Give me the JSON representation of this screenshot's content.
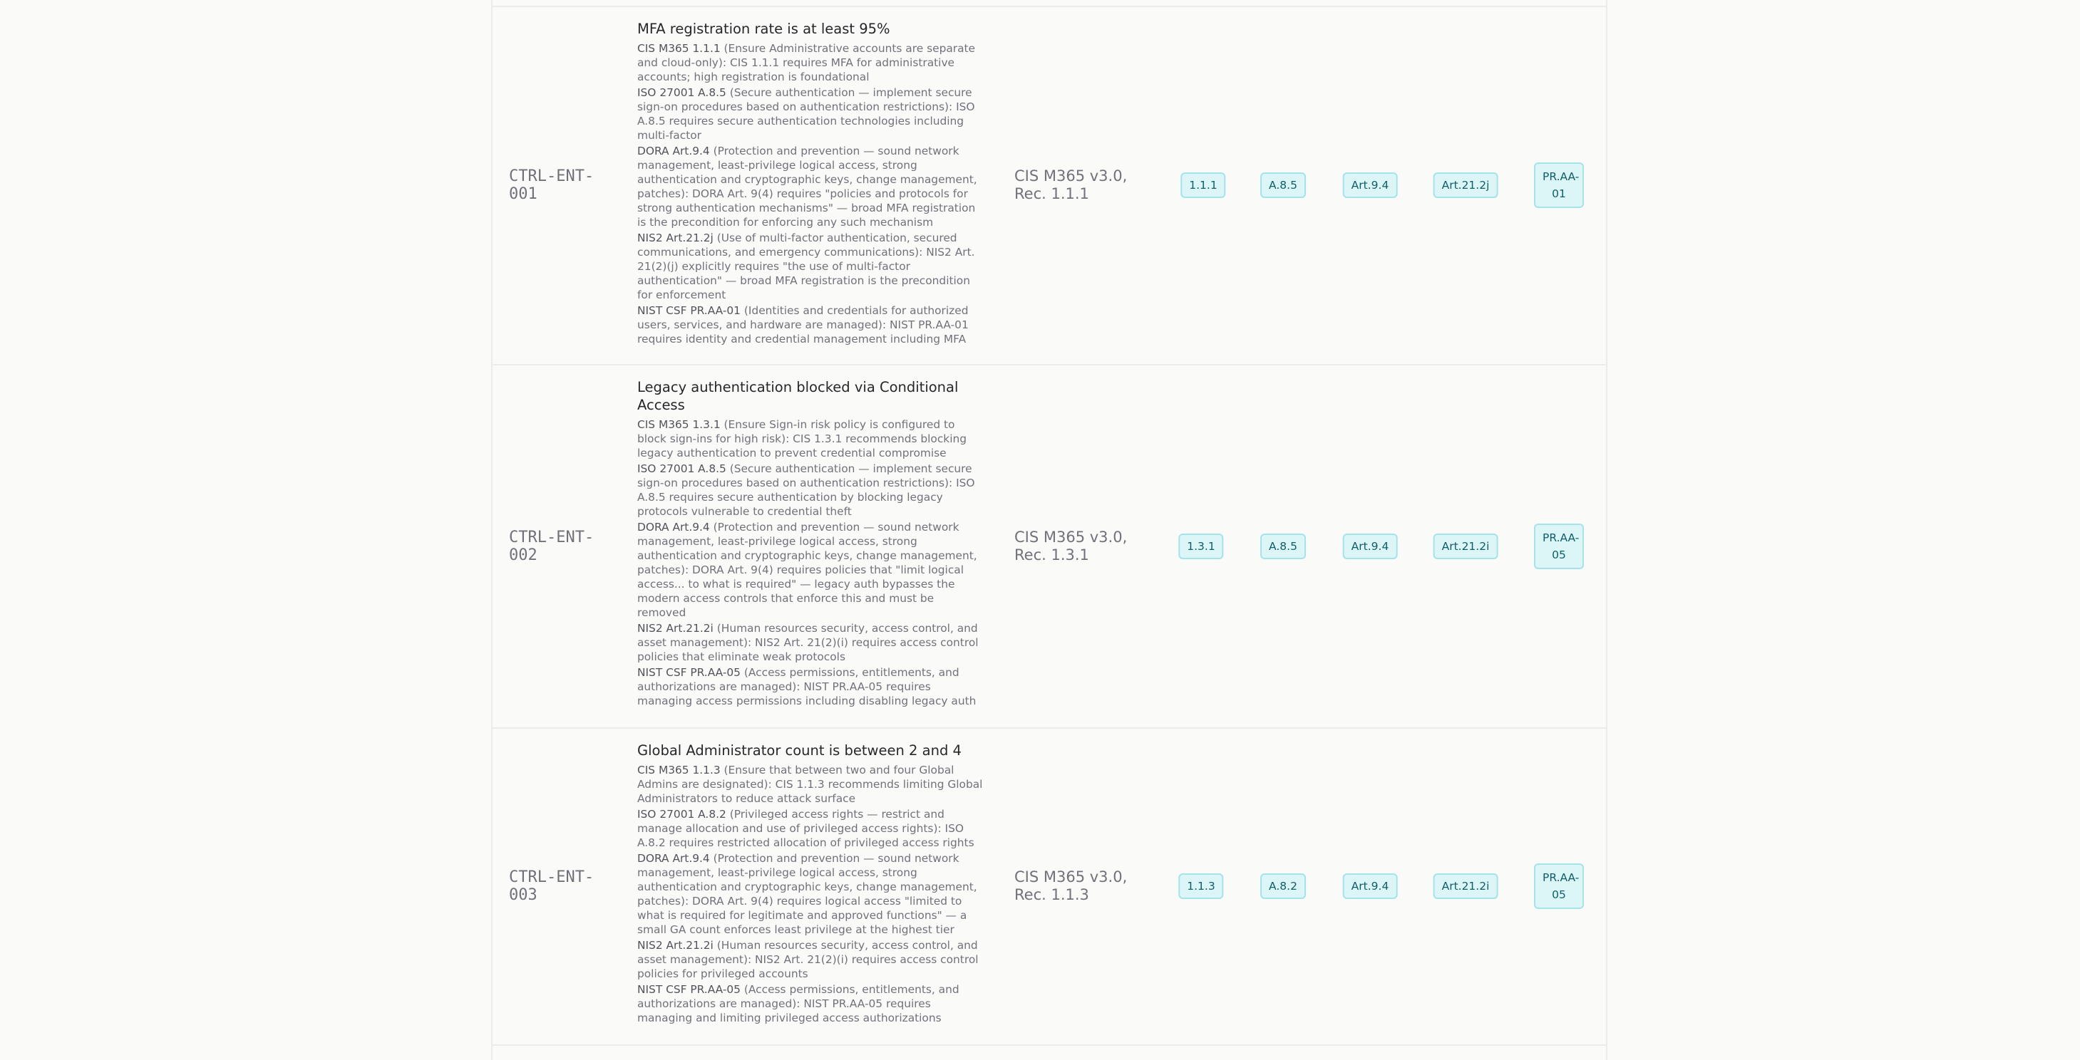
{
  "controls": [
    {
      "id": "CTRL-ENT-\n001",
      "title": "MFA registration rate is at least 95%",
      "source": "CIS M365 v3.0, Rec. 1.1.1",
      "mappings": [
        {
          "ref": "CIS M365 1.1.1",
          "text": " (Ensure Administrative accounts are separate and cloud-only): CIS 1.1.1 requires MFA for administrative accounts; high registration is foundational"
        },
        {
          "ref": "ISO 27001 A.8.5",
          "text": " (Secure authentication — implement secure sign-on procedures based on authentication restrictions): ISO A.8.5 requires secure authentication technologies including multi-factor"
        },
        {
          "ref": "DORA Art.9.4",
          "text": " (Protection and prevention — sound network management, least-privilege logical access, strong authentication and cryptographic keys, change management, patches): DORA Art. 9(4) requires \"policies and protocols for strong authentication mechanisms\" — broad MFA registration is the precondition for enforcing any such mechanism"
        },
        {
          "ref": "NIS2 Art.21.2j",
          "text": " (Use of multi-factor authentication, secured communications, and emergency communications): NIS2 Art. 21(2)(j) explicitly requires \"the use of multi-factor authentication\" — broad MFA registration is the precondition for enforcement"
        },
        {
          "ref": "NIST CSF PR.AA-01",
          "text": " (Identities and credentials for authorized users, services, and hardware are managed): NIST PR.AA-01 requires identity and credential management including MFA"
        }
      ],
      "badges": [
        "1.1.1",
        "A.8.5",
        "Art.9.4",
        "Art.21.2j",
        "PR.AA-01"
      ]
    },
    {
      "id": "CTRL-ENT-\n002",
      "title": "Legacy authentication blocked via Conditional Access",
      "source": "CIS M365 v3.0, Rec. 1.3.1",
      "mappings": [
        {
          "ref": "CIS M365 1.3.1",
          "text": " (Ensure Sign-in risk policy is configured to block sign-ins for high risk): CIS 1.3.1 recommends blocking legacy authentication to prevent credential compromise"
        },
        {
          "ref": "ISO 27001 A.8.5",
          "text": " (Secure authentication — implement secure sign-on procedures based on authentication restrictions): ISO A.8.5 requires secure authentication by blocking legacy protocols vulnerable to credential theft"
        },
        {
          "ref": "DORA Art.9.4",
          "text": " (Protection and prevention — sound network management, least-privilege logical access, strong authentication and cryptographic keys, change management, patches): DORA Art. 9(4) requires policies that \"limit logical access... to what is required\" — legacy auth bypasses the modern access controls that enforce this and must be removed"
        },
        {
          "ref": "NIS2 Art.21.2i",
          "text": " (Human resources security, access control, and asset management): NIS2 Art. 21(2)(i) requires access control policies that eliminate weak protocols"
        },
        {
          "ref": "NIST CSF PR.AA-05",
          "text": " (Access permissions, entitlements, and authorizations are managed): NIST PR.AA-05 requires managing access permissions including disabling legacy auth"
        }
      ],
      "badges": [
        "1.3.1",
        "A.8.5",
        "Art.9.4",
        "Art.21.2i",
        "PR.AA-05"
      ]
    },
    {
      "id": "CTRL-ENT-\n003",
      "title": "Global Administrator count is between 2 and 4",
      "source": "CIS M365 v3.0, Rec. 1.1.3",
      "mappings": [
        {
          "ref": "CIS M365 1.1.3",
          "text": " (Ensure that between two and four Global Admins are designated): CIS 1.1.3 recommends limiting Global Administrators to reduce attack surface"
        },
        {
          "ref": "ISO 27001 A.8.2",
          "text": " (Privileged access rights — restrict and manage allocation and use of privileged access rights): ISO A.8.2 requires restricted allocation of privileged access rights"
        },
        {
          "ref": "DORA Art.9.4",
          "text": " (Protection and prevention — sound network management, least-privilege logical access, strong authentication and cryptographic keys, change management, patches): DORA Art. 9(4) requires logical access \"limited to what is required for legitimate and approved functions\" — a small GA count enforces least privilege at the highest tier"
        },
        {
          "ref": "NIS2 Art.21.2i",
          "text": " (Human resources security, access control, and asset management): NIS2 Art. 21(2)(i) requires access control policies for privileged accounts"
        },
        {
          "ref": "NIST CSF PR.AA-05",
          "text": " (Access permissions, entitlements, and authorizations are managed): NIST PR.AA-05 requires managing and limiting privileged access authorizations"
        }
      ],
      "badges": [
        "1.1.3",
        "A.8.2",
        "Art.9.4",
        "Art.21.2i",
        "PR.AA-05"
      ]
    }
  ]
}
